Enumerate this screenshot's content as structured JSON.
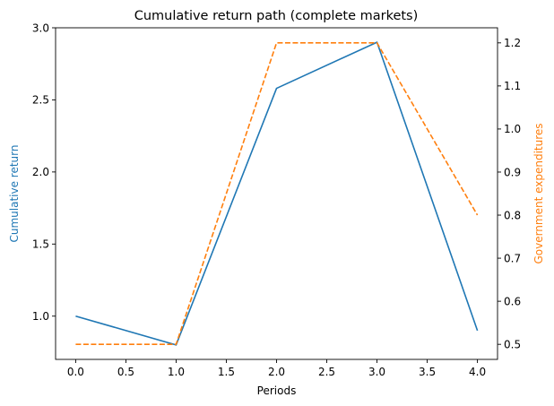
{
  "chart_data": {
    "type": "line",
    "title": "Cumulative return path (complete markets)",
    "xlabel": "Periods",
    "ylabel_left": "Cumulative return",
    "ylabel_right": "Government expenditures",
    "x": [
      0,
      1,
      2,
      3,
      4
    ],
    "xlim": [
      -0.2,
      4.2
    ],
    "ylim_left": [
      0.7,
      3.0
    ],
    "ylim_right": [
      0.465,
      1.235
    ],
    "x_ticks": [
      "0.0",
      "0.5",
      "1.0",
      "1.5",
      "2.0",
      "2.5",
      "3.0",
      "3.5",
      "4.0"
    ],
    "y_ticks_left": [
      "1.0",
      "1.5",
      "2.0",
      "2.5",
      "3.0"
    ],
    "y_ticks_right": [
      "0.5",
      "0.6",
      "0.7",
      "0.8",
      "0.9",
      "1.0",
      "1.1",
      "1.2"
    ],
    "grid": false,
    "series": [
      {
        "axis": "left",
        "color": "#1f77b4",
        "style": "solid",
        "values": [
          1.0,
          0.8,
          2.58,
          2.9,
          0.9
        ]
      },
      {
        "axis": "right",
        "color": "#ff7f0e",
        "style": "dashed",
        "values": [
          0.5,
          0.5,
          1.2,
          1.2,
          0.8
        ]
      }
    ]
  }
}
